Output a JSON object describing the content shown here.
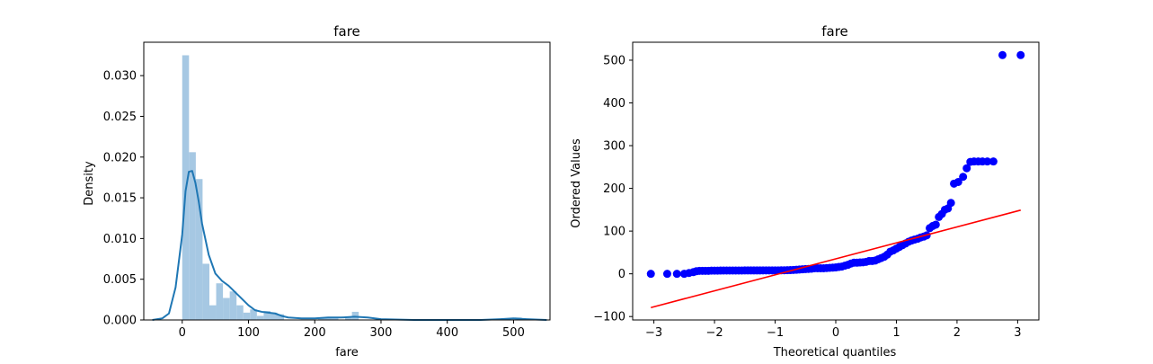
{
  "chart_data": [
    {
      "type": "bar",
      "subtype": "histogram_with_kde",
      "title": "fare",
      "xlabel": "fare",
      "ylabel": "Density",
      "xlim": [
        -58,
        555
      ],
      "ylim": [
        0,
        0.0341
      ],
      "x_ticks": [
        0,
        100,
        200,
        300,
        400,
        500
      ],
      "x_tick_labels": [
        "0",
        "100",
        "200",
        "300",
        "400",
        "500"
      ],
      "y_ticks": [
        0,
        0.005,
        0.01,
        0.015,
        0.02,
        0.025,
        0.03
      ],
      "y_tick_labels": [
        "0.000",
        "0.005",
        "0.010",
        "0.015",
        "0.020",
        "0.025",
        "0.030"
      ],
      "bar_color": "#a6c8e3",
      "line_color": "#1f77b4",
      "bins": [
        {
          "x0": 0.0,
          "x1": 10.24,
          "density": 0.0325
        },
        {
          "x0": 10.24,
          "x1": 20.49,
          "density": 0.0206
        },
        {
          "x0": 20.49,
          "x1": 30.73,
          "density": 0.0173
        },
        {
          "x0": 30.73,
          "x1": 40.98,
          "density": 0.0069
        },
        {
          "x0": 40.98,
          "x1": 51.22,
          "density": 0.0018
        },
        {
          "x0": 51.22,
          "x1": 61.47,
          "density": 0.0045
        },
        {
          "x0": 61.47,
          "x1": 71.71,
          "density": 0.0027
        },
        {
          "x0": 71.71,
          "x1": 81.96,
          "density": 0.0035
        },
        {
          "x0": 81.96,
          "x1": 92.2,
          "density": 0.0018
        },
        {
          "x0": 92.2,
          "x1": 102.44,
          "density": 0.0009
        },
        {
          "x0": 102.44,
          "x1": 112.69,
          "density": 0.0013
        },
        {
          "x0": 112.69,
          "x1": 122.93,
          "density": 0.0005
        },
        {
          "x0": 122.93,
          "x1": 133.18,
          "density": 0.0011
        },
        {
          "x0": 133.18,
          "x1": 143.42,
          "density": 0.0009
        },
        {
          "x0": 143.42,
          "x1": 153.67,
          "density": 0.0007
        },
        {
          "x0": 204.9,
          "x1": 215.14,
          "density": 0.0003
        },
        {
          "x0": 215.14,
          "x1": 225.38,
          "density": 0.0003
        },
        {
          "x0": 225.38,
          "x1": 235.63,
          "density": 0.0002
        },
        {
          "x0": 245.87,
          "x1": 256.12,
          "density": 0.0003
        },
        {
          "x0": 256.12,
          "x1": 266.36,
          "density": 0.001
        },
        {
          "x0": 501.97,
          "x1": 512.33,
          "density": 0.0003
        }
      ],
      "kde": {
        "x": [
          -45,
          -30,
          -20,
          -10,
          0,
          5,
          10,
          15,
          20,
          25,
          30,
          40,
          50,
          60,
          70,
          80,
          90,
          100,
          110,
          120,
          130,
          140,
          150,
          160,
          180,
          200,
          220,
          240,
          260,
          280,
          300,
          350,
          400,
          450,
          480,
          500,
          520,
          550
        ],
        "y": [
          0,
          0.0002,
          0.0008,
          0.004,
          0.0105,
          0.0158,
          0.0182,
          0.0183,
          0.0168,
          0.0145,
          0.0118,
          0.008,
          0.0057,
          0.0048,
          0.0042,
          0.0034,
          0.0026,
          0.0018,
          0.0012,
          0.001,
          0.0009,
          0.0008,
          0.0005,
          0.0003,
          0.0002,
          0.0002,
          0.0003,
          0.0003,
          0.0004,
          0.0003,
          0.0001,
          0.0,
          0.0,
          0.0,
          0.0001,
          0.0002,
          0.0001,
          0.0
        ]
      }
    },
    {
      "type": "scatter",
      "subtype": "probability_plot",
      "title": "fare",
      "xlabel": "Theoretical quantiles",
      "ylabel": "Ordered Values",
      "xlim": [
        -3.35,
        3.35
      ],
      "ylim": [
        -108,
        542
      ],
      "x_ticks": [
        -3,
        -2,
        -1,
        0,
        1,
        2,
        3
      ],
      "x_tick_labels": [
        "−3",
        "−2",
        "−1",
        "0",
        "1",
        "2",
        "3"
      ],
      "y_ticks": [
        -100,
        0,
        100,
        200,
        300,
        400,
        500
      ],
      "y_tick_labels": [
        "−100",
        "0",
        "100",
        "200",
        "300",
        "400",
        "500"
      ],
      "marker_color": "#0000ff",
      "line_color": "#ff0000",
      "fit_line": {
        "x": [
          -3.05,
          3.05
        ],
        "y": [
          -79,
          149
        ]
      },
      "points": {
        "x": [
          -3.05,
          -2.78,
          -2.62,
          -2.5,
          -2.42,
          -2.35,
          -2.3,
          -2.25,
          -2.2,
          -2.15,
          -2.1,
          -2.05,
          -2.0,
          -1.95,
          -1.9,
          -1.85,
          -1.8,
          -1.75,
          -1.7,
          -1.65,
          -1.6,
          -1.55,
          -1.5,
          -1.45,
          -1.4,
          -1.35,
          -1.3,
          -1.25,
          -1.2,
          -1.15,
          -1.1,
          -1.05,
          -1.0,
          -0.95,
          -0.9,
          -0.85,
          -0.8,
          -0.75,
          -0.7,
          -0.65,
          -0.6,
          -0.55,
          -0.5,
          -0.45,
          -0.4,
          -0.35,
          -0.3,
          -0.25,
          -0.2,
          -0.15,
          -0.1,
          -0.05,
          0.0,
          0.05,
          0.1,
          0.15,
          0.2,
          0.25,
          0.3,
          0.35,
          0.4,
          0.45,
          0.5,
          0.55,
          0.6,
          0.65,
          0.7,
          0.75,
          0.8,
          0.85,
          0.9,
          0.95,
          1.0,
          1.05,
          1.1,
          1.15,
          1.2,
          1.25,
          1.3,
          1.35,
          1.4,
          1.45,
          1.5,
          1.55,
          1.6,
          1.65,
          1.7,
          1.75,
          1.8,
          1.85,
          1.9,
          1.95,
          2.02,
          2.1,
          2.16,
          2.22,
          2.28,
          2.35,
          2.42,
          2.5,
          2.6,
          2.75,
          3.05
        ],
        "y": [
          0,
          0,
          0,
          0,
          2,
          4,
          6,
          7,
          7,
          7,
          7,
          7.5,
          7.5,
          7.5,
          7.6,
          7.7,
          7.7,
          7.75,
          7.75,
          7.8,
          7.8,
          7.8,
          7.85,
          7.9,
          7.9,
          7.9,
          7.9,
          7.9,
          8,
          8,
          8,
          8,
          8.05,
          8.05,
          8.1,
          8.3,
          8.5,
          8.7,
          9,
          9.5,
          10,
          10.5,
          11,
          11.5,
          12,
          13,
          13,
          13,
          13,
          13.5,
          14,
          14.5,
          15,
          16,
          17,
          19,
          21,
          24,
          26,
          26,
          26.5,
          27,
          28,
          30,
          30,
          31,
          34,
          37,
          40,
          45,
          52,
          55,
          59,
          63,
          67,
          71,
          75,
          78,
          80,
          82,
          85,
          87,
          90,
          107,
          112,
          115,
          133,
          140,
          150,
          153,
          166,
          211,
          215,
          227,
          247,
          262,
          263,
          263,
          263,
          263,
          263,
          512,
          512
        ]
      }
    }
  ]
}
